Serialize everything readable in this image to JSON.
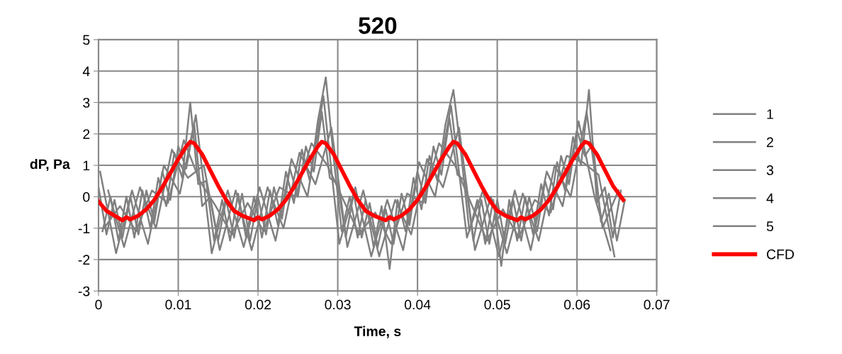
{
  "chart_data": {
    "type": "line",
    "title": "520",
    "xlabel": "Time, s",
    "ylabel": "dP, Pa",
    "xlim": [
      0,
      0.07
    ],
    "xticks": [
      0,
      0.01,
      0.02,
      0.03,
      0.04,
      0.05,
      0.06,
      0.07
    ],
    "ylim": [
      -3,
      5
    ],
    "yticks": [
      -3,
      -2,
      -1,
      0,
      1,
      2,
      3,
      4,
      5
    ],
    "grid": true,
    "legend": "right",
    "series": [
      {
        "name": "1",
        "color": "#808080",
        "x": [
          0,
          0.001,
          0.002,
          0.003,
          0.004,
          0.005,
          0.006,
          0.007,
          0.008,
          0.009,
          0.01,
          0.011,
          0.012,
          0.013,
          0.014,
          0.015,
          0.016,
          0.017,
          0.018,
          0.019,
          0.02,
          0.021,
          0.022,
          0.023,
          0.024,
          0.025,
          0.026,
          0.027,
          0.028,
          0.029,
          0.03,
          0.031,
          0.032,
          0.033,
          0.034,
          0.035,
          0.036,
          0.037,
          0.038,
          0.039,
          0.04,
          0.041,
          0.042,
          0.043,
          0.044,
          0.045,
          0.046,
          0.047,
          0.048,
          0.049,
          0.05,
          0.051,
          0.052,
          0.053,
          0.054,
          0.055,
          0.056,
          0.057,
          0.058,
          0.059,
          0.06,
          0.061,
          0.062,
          0.063,
          0.064,
          0.065,
          0.066
        ],
        "values": [
          0.3,
          -1.2,
          -0.1,
          -1.3,
          0.0,
          -1.2,
          0.2,
          -0.8,
          0.8,
          -0.1,
          1.6,
          0.9,
          2.3,
          -0.3,
          0.0,
          -1.4,
          -0.1,
          -1.3,
          0.1,
          -1.4,
          0.0,
          -1.2,
          0.3,
          -0.7,
          0.9,
          0.0,
          1.6,
          0.8,
          2.7,
          0.6,
          0.4,
          -1.3,
          0.1,
          -1.3,
          -0.2,
          -1.6,
          -0.4,
          -1.5,
          0.1,
          -0.9,
          0.8,
          -0.2,
          1.6,
          0.7,
          2.5,
          0.7,
          0.5,
          -1.4,
          -0.1,
          -1.5,
          -0.1,
          -1.5,
          -0.1,
          -1.4,
          0.0,
          -1.1,
          0.5,
          -0.4,
          1.3,
          0.4,
          2.1,
          1.3,
          1.7,
          -0.8,
          0.1,
          -1.4,
          -0.1
        ]
      },
      {
        "name": "2",
        "color": "#808080",
        "x": [
          0.0005,
          0.0015,
          0.0025,
          0.0035,
          0.0045,
          0.0055,
          0.0065,
          0.0075,
          0.0085,
          0.0095,
          0.0105,
          0.0115,
          0.0125,
          0.0135,
          0.0145,
          0.0155,
          0.0165,
          0.0175,
          0.0185,
          0.0195,
          0.0205,
          0.0215,
          0.0225,
          0.0235,
          0.0245,
          0.0255,
          0.0265,
          0.0275,
          0.0285,
          0.0295,
          0.0305,
          0.0315,
          0.0325,
          0.0335,
          0.0345,
          0.0355,
          0.0365,
          0.0375,
          0.0385,
          0.0395,
          0.0405,
          0.0415,
          0.0425,
          0.0435,
          0.0445,
          0.0455,
          0.0465,
          0.0475,
          0.0485,
          0.0495,
          0.0505,
          0.0515,
          0.0525,
          0.0535,
          0.0545,
          0.0555,
          0.0565,
          0.0575,
          0.0585,
          0.0595,
          0.0605,
          0.0615,
          0.0625,
          0.0635,
          0.0645,
          0.0655
        ],
        "values": [
          -1.1,
          0.0,
          -1.4,
          0.0,
          -1.3,
          0.2,
          -1.0,
          0.6,
          -0.3,
          1.4,
          0.6,
          3.0,
          0.4,
          0.5,
          -1.4,
          -0.1,
          -1.4,
          0.1,
          -1.3,
          0.0,
          -1.3,
          0.2,
          -0.9,
          0.8,
          -0.2,
          1.5,
          0.5,
          2.4,
          3.8,
          1.2,
          -1.1,
          0.0,
          -1.3,
          -0.1,
          -1.6,
          -0.3,
          -2.3,
          -0.1,
          -1.1,
          0.6,
          -0.4,
          1.3,
          0.5,
          2.3,
          3.4,
          1.3,
          -1.1,
          -0.1,
          -1.5,
          -0.1,
          -2.2,
          -0.1,
          -1.4,
          0.0,
          -1.2,
          0.4,
          -0.6,
          1.1,
          0.2,
          1.9,
          1.0,
          3.4,
          -0.2,
          0.3,
          -1.3,
          0.2
        ]
      },
      {
        "name": "3",
        "color": "#808080",
        "x": [
          0.0002,
          0.0022,
          0.0042,
          0.0062,
          0.0082,
          0.0102,
          0.0122,
          0.0142,
          0.0162,
          0.0182,
          0.0202,
          0.0222,
          0.0242,
          0.0262,
          0.0282,
          0.0302,
          0.0322,
          0.0342,
          0.0362,
          0.0382,
          0.0402,
          0.0422,
          0.0442,
          0.0462,
          0.0482,
          0.0502,
          0.0522,
          0.0542,
          0.0562,
          0.0582,
          0.0602,
          0.0622,
          0.0642
        ],
        "values": [
          0.8,
          -1.8,
          0.2,
          -1.5,
          1.0,
          0.1,
          2.6,
          -1.8,
          0.2,
          -1.6,
          0.3,
          -1.4,
          1.2,
          0.0,
          3.2,
          -1.5,
          0.3,
          -1.9,
          -0.1,
          -1.7,
          1.1,
          0.0,
          2.9,
          -1.3,
          0.2,
          -1.9,
          0.2,
          -1.7,
          0.8,
          -0.3,
          2.4,
          0.0,
          -1.7
        ]
      },
      {
        "name": "4",
        "color": "#808080",
        "x": [
          0.0012,
          0.0032,
          0.0052,
          0.0072,
          0.0092,
          0.0112,
          0.0132,
          0.0152,
          0.0172,
          0.0192,
          0.0212,
          0.0232,
          0.0252,
          0.0272,
          0.0292,
          0.0312,
          0.0332,
          0.0352,
          0.0372,
          0.0392,
          0.0412,
          0.0432,
          0.0452,
          0.0472,
          0.0492,
          0.0512,
          0.0532,
          0.0552,
          0.0572,
          0.0592,
          0.0612,
          0.0632,
          0.0652
        ],
        "values": [
          0.2,
          -1.6,
          0.3,
          -1.0,
          1.5,
          0.6,
          1.0,
          -1.7,
          0.2,
          -1.7,
          0.3,
          -1.0,
          1.4,
          0.4,
          2.2,
          -1.6,
          0.2,
          -1.9,
          -0.1,
          -1.2,
          1.2,
          0.3,
          2.2,
          -1.7,
          0.0,
          -1.8,
          0.1,
          -1.4,
          1.0,
          0.0,
          2.7,
          -1.0,
          0.2
        ]
      },
      {
        "name": "5",
        "color": "#808080",
        "x": [
          0.0007,
          0.0027,
          0.0047,
          0.0067,
          0.0087,
          0.0107,
          0.0127,
          0.0147,
          0.0167,
          0.0187,
          0.0207,
          0.0227,
          0.0247,
          0.0267,
          0.0287,
          0.0307,
          0.0327,
          0.0347,
          0.0367,
          0.0387,
          0.0407,
          0.0427,
          0.0447,
          0.0467,
          0.0487,
          0.0507,
          0.0527,
          0.0547,
          0.0567,
          0.0587,
          0.0607,
          0.0627,
          0.0647
        ],
        "values": [
          -1.0,
          -0.3,
          -1.1,
          0.2,
          -0.2,
          1.8,
          0.5,
          -0.3,
          -1.2,
          -0.2,
          -1.1,
          0.3,
          0.0,
          1.7,
          1.0,
          -0.1,
          -1.2,
          -0.5,
          -1.5,
          0.1,
          -0.2,
          1.7,
          1.0,
          -0.2,
          -1.4,
          -0.4,
          -1.3,
          -0.1,
          -0.5,
          1.3,
          1.1,
          0.7,
          -1.9
        ]
      },
      {
        "name": "CFD",
        "color": "#ff0000",
        "x": [
          0,
          0.001,
          0.002,
          0.003,
          0.0035,
          0.004,
          0.005,
          0.006,
          0.007,
          0.008,
          0.009,
          0.01,
          0.011,
          0.0115,
          0.012,
          0.013,
          0.014,
          0.015,
          0.016,
          0.017,
          0.018,
          0.0195,
          0.02,
          0.0205,
          0.0215,
          0.0225,
          0.0235,
          0.0245,
          0.0255,
          0.0265,
          0.0275,
          0.028,
          0.0285,
          0.0295,
          0.0305,
          0.0315,
          0.0325,
          0.0335,
          0.0345,
          0.036,
          0.0365,
          0.037,
          0.038,
          0.039,
          0.04,
          0.041,
          0.042,
          0.043,
          0.044,
          0.0445,
          0.045,
          0.046,
          0.047,
          0.048,
          0.049,
          0.05,
          0.051,
          0.0525,
          0.053,
          0.0535,
          0.0545,
          0.0555,
          0.0565,
          0.0575,
          0.0585,
          0.0595,
          0.0605,
          0.061,
          0.0615,
          0.0625,
          0.0635,
          0.0645,
          0.0658
        ],
        "values": [
          -0.15,
          -0.45,
          -0.6,
          -0.75,
          -0.65,
          -0.72,
          -0.6,
          -0.4,
          -0.1,
          0.3,
          0.75,
          1.2,
          1.6,
          1.75,
          1.7,
          1.35,
          0.85,
          0.35,
          -0.1,
          -0.45,
          -0.6,
          -0.75,
          -0.65,
          -0.72,
          -0.6,
          -0.4,
          -0.1,
          0.3,
          0.75,
          1.2,
          1.6,
          1.75,
          1.7,
          1.35,
          0.85,
          0.35,
          -0.1,
          -0.45,
          -0.6,
          -0.75,
          -0.65,
          -0.72,
          -0.6,
          -0.4,
          -0.1,
          0.3,
          0.75,
          1.2,
          1.6,
          1.75,
          1.7,
          1.35,
          0.85,
          0.35,
          -0.1,
          -0.45,
          -0.6,
          -0.75,
          -0.65,
          -0.72,
          -0.6,
          -0.4,
          -0.1,
          0.3,
          0.75,
          1.2,
          1.6,
          1.75,
          1.7,
          1.35,
          0.85,
          0.35,
          -0.1
        ]
      }
    ]
  }
}
